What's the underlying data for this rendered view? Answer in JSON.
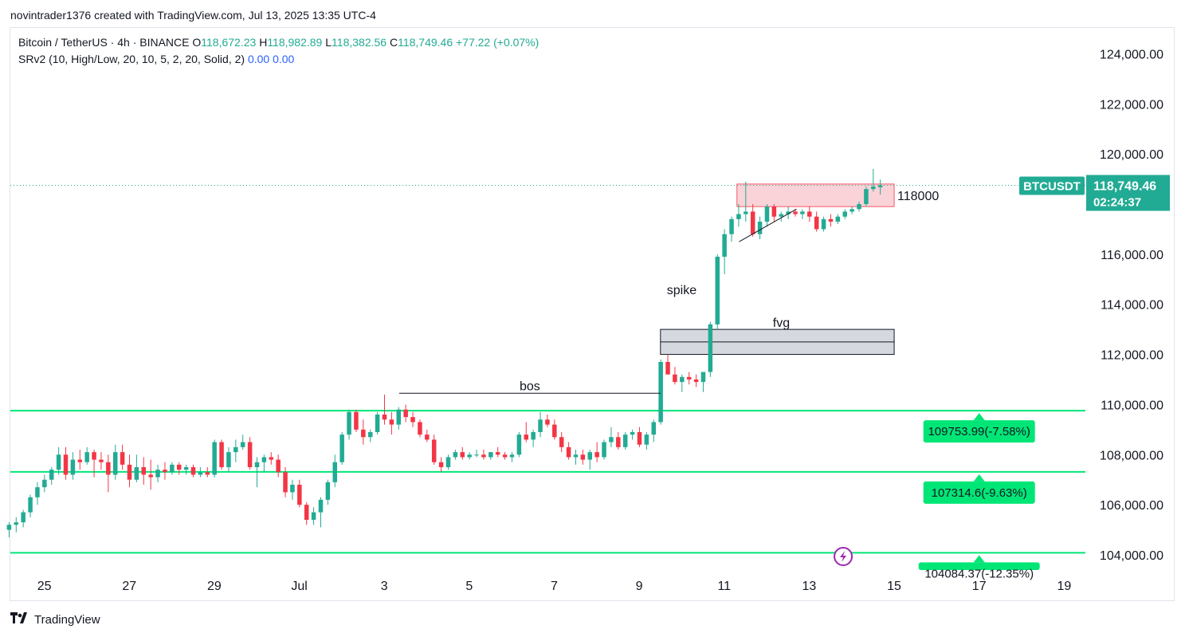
{
  "header": {
    "attribution": "novintrader1376 created with TradingView.com, Jul 13, 2025 13:35 UTC-4"
  },
  "legend": {
    "symbol": "Bitcoin / TetherUS · 4h · BINANCE",
    "o_label": "O",
    "o_value": "118,672.23",
    "h_label": "H",
    "h_value": "118,982.89",
    "l_label": "L",
    "l_value": "118,382.56",
    "c_label": "C",
    "c_value": "118,749.46",
    "change": "+77.22 (+0.07%)",
    "indicator": "SRv2 (10, High/Low, 20, 10, 5, 2, 20, Solid, 2)",
    "ind_v1": "0.00",
    "ind_v2": "0.00"
  },
  "colors": {
    "up": "#22ab94",
    "down": "#f23645",
    "support": "#00e676",
    "supply_zone": "#f7c4c9",
    "fvg_zone": "#d1d4dc",
    "price_tag": "#22ab94"
  },
  "footer": {
    "brand": "TradingView",
    "logo_icon": "tradingview-logo-icon"
  },
  "chart_data": {
    "type": "candlestick",
    "title": "Bitcoin / TetherUS · 4h · BINANCE",
    "ylim": [
      103300,
      125000
    ],
    "y_ticks": [
      104000,
      106000,
      108000,
      110000,
      112000,
      114000,
      116000,
      118000,
      120000,
      122000,
      124000
    ],
    "y_tick_labels": [
      "104,000.00",
      "106,000.00",
      "108,000.00",
      "110,000.00",
      "112,000.00",
      "114,000.00",
      "116,000.00",
      "118,000.00",
      "120,000.00",
      "122,000.00",
      "124,000.00"
    ],
    "x_tick_labels": [
      "25",
      "27",
      "29",
      "Jul",
      "3",
      "5",
      "7",
      "9",
      "11",
      "13",
      "15",
      "17",
      "19"
    ],
    "x_tick_days": [
      25,
      27,
      29,
      31,
      33,
      35,
      37,
      39,
      41,
      43,
      45,
      47,
      49
    ],
    "x_range_days": [
      24.2,
      49.5
    ],
    "x_unit": "day (Jun 24 = 24; Jul 1 = 31)",
    "candles_start_day": 24.17,
    "candle_step_days": 0.1667,
    "candles": [
      [
        105000,
        105300,
        104700,
        105200
      ],
      [
        105200,
        105500,
        104900,
        105300
      ],
      [
        105300,
        105800,
        105100,
        105700
      ],
      [
        105700,
        106400,
        105500,
        106300
      ],
      [
        106300,
        106900,
        106000,
        106700
      ],
      [
        106700,
        107200,
        106500,
        107000
      ],
      [
        107000,
        107500,
        106800,
        107400
      ],
      [
        107400,
        108300,
        107200,
        108000
      ],
      [
        108000,
        108300,
        107000,
        107200
      ],
      [
        107200,
        108100,
        107000,
        107800
      ],
      [
        107800,
        108200,
        107400,
        107700
      ],
      [
        107700,
        108300,
        107600,
        108100
      ],
      [
        108100,
        108200,
        107100,
        107800
      ],
      [
        107800,
        108100,
        107400,
        107700
      ],
      [
        107700,
        108000,
        106500,
        107200
      ],
      [
        107200,
        108400,
        107000,
        108100
      ],
      [
        108100,
        108400,
        107400,
        107600
      ],
      [
        107600,
        108000,
        106700,
        107000
      ],
      [
        107000,
        108000,
        106900,
        107500
      ],
      [
        107500,
        107900,
        106800,
        107200
      ],
      [
        107200,
        107800,
        106600,
        107100
      ],
      [
        107100,
        107600,
        106900,
        107400
      ],
      [
        107400,
        107700,
        107000,
        107300
      ],
      [
        107300,
        107700,
        107200,
        107600
      ],
      [
        107600,
        107700,
        107200,
        107400
      ],
      [
        107400,
        107600,
        107200,
        107500
      ],
      [
        107500,
        107600,
        107100,
        107200
      ],
      [
        107200,
        107500,
        107100,
        107300
      ],
      [
        107300,
        107500,
        107100,
        107200
      ],
      [
        107200,
        108600,
        107100,
        108500
      ],
      [
        108500,
        108600,
        107400,
        107500
      ],
      [
        107500,
        108300,
        107300,
        108100
      ],
      [
        108100,
        108600,
        107700,
        108300
      ],
      [
        108300,
        108800,
        108200,
        108500
      ],
      [
        108500,
        108700,
        107400,
        107500
      ],
      [
        107500,
        107900,
        106700,
        107700
      ],
      [
        107700,
        108000,
        107300,
        107900
      ],
      [
        107900,
        108100,
        107600,
        107800
      ],
      [
        107800,
        108000,
        107100,
        107300
      ],
      [
        107300,
        107500,
        106300,
        106500
      ],
      [
        106500,
        107000,
        106200,
        106800
      ],
      [
        106800,
        107000,
        105900,
        106000
      ],
      [
        106000,
        106100,
        105200,
        105400
      ],
      [
        105400,
        105900,
        105200,
        105700
      ],
      [
        105700,
        106300,
        105100,
        106200
      ],
      [
        106200,
        107000,
        106000,
        106900
      ],
      [
        106900,
        108000,
        106700,
        107700
      ],
      [
        107700,
        108900,
        107600,
        108800
      ],
      [
        108800,
        109800,
        108600,
        109700
      ],
      [
        109700,
        109800,
        108900,
        109000
      ],
      [
        109000,
        109400,
        108400,
        108700
      ],
      [
        108700,
        109000,
        108500,
        108900
      ],
      [
        108900,
        109700,
        108800,
        109600
      ],
      [
        109600,
        110400,
        109200,
        109400
      ],
      [
        109400,
        109700,
        108800,
        109200
      ],
      [
        109200,
        109900,
        109000,
        109800
      ],
      [
        109800,
        110000,
        109300,
        109500
      ],
      [
        109500,
        109700,
        109100,
        109300
      ],
      [
        109300,
        109400,
        108700,
        108800
      ],
      [
        108800,
        109000,
        108500,
        108600
      ],
      [
        108600,
        108800,
        107600,
        107700
      ],
      [
        107700,
        107900,
        107300,
        107500
      ],
      [
        107500,
        108000,
        107400,
        107900
      ],
      [
        107900,
        108200,
        107800,
        108100
      ],
      [
        108100,
        108300,
        107800,
        107900
      ],
      [
        107900,
        108100,
        107800,
        108000
      ],
      [
        108000,
        108200,
        107900,
        108000
      ],
      [
        108000,
        108200,
        107800,
        107900
      ],
      [
        107900,
        108100,
        107800,
        108100
      ],
      [
        108100,
        108300,
        107900,
        108000
      ],
      [
        108000,
        108100,
        107800,
        107900
      ],
      [
        107900,
        108100,
        107700,
        108000
      ],
      [
        108000,
        108900,
        107900,
        108800
      ],
      [
        108800,
        109300,
        108500,
        108600
      ],
      [
        108600,
        109000,
        108300,
        108900
      ],
      [
        108900,
        109700,
        108700,
        109400
      ],
      [
        109400,
        109600,
        109100,
        109200
      ],
      [
        109200,
        109400,
        108600,
        108700
      ],
      [
        108700,
        108900,
        108100,
        108300
      ],
      [
        108300,
        108500,
        107800,
        107900
      ],
      [
        107900,
        108200,
        107600,
        108000
      ],
      [
        108000,
        108200,
        107600,
        107800
      ],
      [
        107800,
        108200,
        107400,
        108100
      ],
      [
        108100,
        108500,
        107700,
        107900
      ],
      [
        107900,
        108600,
        107800,
        108500
      ],
      [
        108500,
        109100,
        108300,
        108700
      ],
      [
        108700,
        108900,
        108200,
        108300
      ],
      [
        108300,
        108900,
        108200,
        108800
      ],
      [
        108800,
        109000,
        108600,
        108900
      ],
      [
        108900,
        109100,
        108300,
        108400
      ],
      [
        108400,
        108900,
        108200,
        108800
      ],
      [
        108800,
        109400,
        108500,
        109300
      ],
      [
        109300,
        111800,
        109200,
        111700
      ],
      [
        111700,
        112000,
        111300,
        111200
      ],
      [
        111200,
        111500,
        110800,
        110900
      ],
      [
        110900,
        111200,
        110500,
        111100
      ],
      [
        111100,
        111300,
        110800,
        111000
      ],
      [
        111000,
        111200,
        110700,
        110900
      ],
      [
        110900,
        111100,
        110500,
        111300
      ],
      [
        111300,
        113300,
        111100,
        113200
      ],
      [
        113200,
        116000,
        113000,
        115900
      ],
      [
        115900,
        117000,
        115200,
        116800
      ],
      [
        116800,
        117500,
        116500,
        117400
      ],
      [
        117400,
        118000,
        117100,
        117600
      ],
      [
        117600,
        118900,
        117300,
        117700
      ],
      [
        117700,
        118000,
        116700,
        116800
      ],
      [
        116800,
        117500,
        116600,
        117300
      ],
      [
        117300,
        118000,
        117100,
        117900
      ],
      [
        117900,
        118000,
        117300,
        117500
      ],
      [
        117500,
        117700,
        117300,
        117600
      ],
      [
        117600,
        117900,
        117400,
        117700
      ],
      [
        117700,
        117800,
        117500,
        117600
      ],
      [
        117600,
        117800,
        117400,
        117700
      ],
      [
        117700,
        117900,
        117300,
        117500
      ],
      [
        117500,
        117700,
        116900,
        117000
      ],
      [
        117000,
        117500,
        116900,
        117400
      ],
      [
        117400,
        117600,
        117100,
        117300
      ],
      [
        117300,
        117600,
        117200,
        117500
      ],
      [
        117500,
        117800,
        117400,
        117700
      ],
      [
        117700,
        117900,
        117600,
        117800
      ],
      [
        117800,
        118100,
        117700,
        118000
      ],
      [
        118000,
        118700,
        117900,
        118600
      ],
      [
        118600,
        119400,
        118500,
        118700
      ],
      [
        118672.23,
        118982.89,
        118382.56,
        118749.46
      ]
    ],
    "last_price": 118749.46,
    "price_tag": {
      "symbol": "BTCUSDT",
      "price": "118,749.46",
      "countdown": "02:24:37"
    },
    "support_levels": [
      {
        "price": 109753.99,
        "label": "109753.99(-7.58%)"
      },
      {
        "price": 107314.6,
        "label": "107314.6(-9.63%)"
      },
      {
        "price": 104084.37,
        "label": "104084.37(-12.35%)"
      }
    ],
    "zones": [
      {
        "name": "supply",
        "from_day": 41.3,
        "to_day": 45.0,
        "low": 117900,
        "high": 118800,
        "label": "118000"
      },
      {
        "name": "fvg",
        "from_day": 39.5,
        "to_day": 45.0,
        "low": 112000,
        "high": 113000,
        "label": "fvg"
      }
    ],
    "annotations": [
      {
        "text": "bos",
        "from_day": 33.35,
        "to_day": 39.5,
        "price": 110450
      },
      {
        "text": "spike",
        "day": 40.0,
        "price": 114400
      }
    ],
    "trendline": {
      "from_day": 41.35,
      "from_price": 116500,
      "to_day": 42.7,
      "to_price": 117800
    },
    "grid": false,
    "legend_position": "top-left"
  }
}
